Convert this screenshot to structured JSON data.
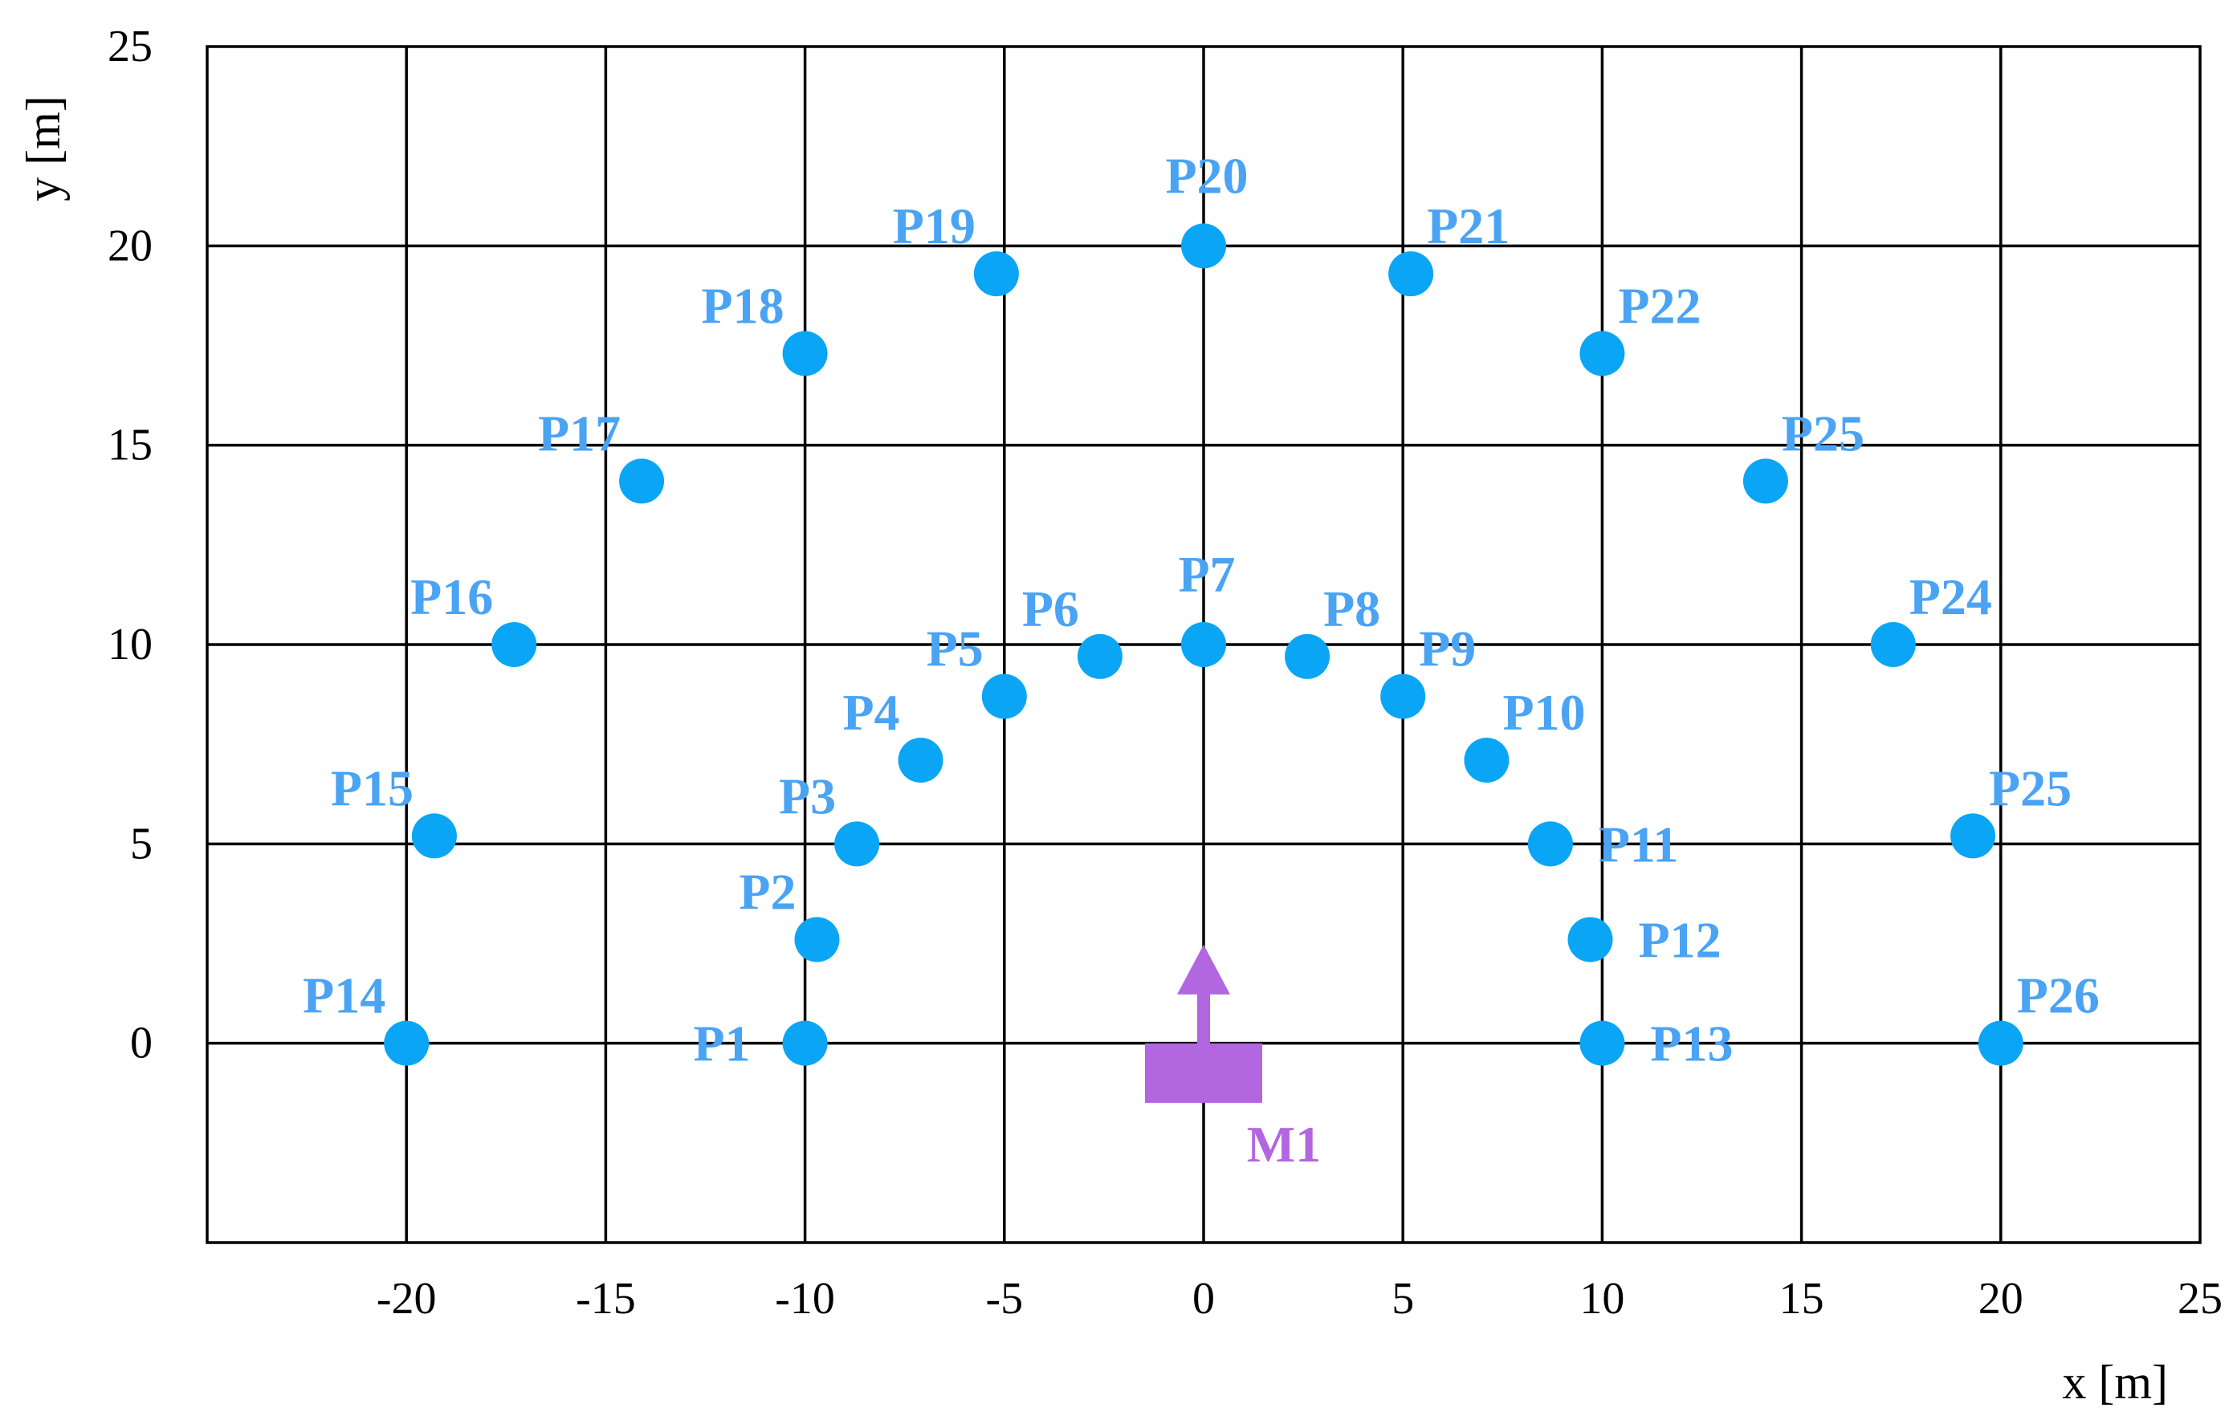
{
  "chart_data": {
    "type": "scatter",
    "title": "",
    "xlabel": "x [m]",
    "ylabel": "y [m]",
    "xlim": [
      -25,
      25
    ],
    "ylim": [
      -5,
      25
    ],
    "x_ticks": [
      -20,
      -15,
      -10,
      -5,
      0,
      5,
      10,
      15,
      20,
      25
    ],
    "y_ticks": [
      0,
      5,
      10,
      15,
      20,
      25
    ],
    "grid": true,
    "legend": "none",
    "colors": {
      "points": "#0aa6f5",
      "labels": "#4aa3f3",
      "microphone": "#b266e0",
      "grid": "#000000"
    },
    "points": [
      {
        "label": "P1",
        "x": -10,
        "y": 0,
        "label_side": "left"
      },
      {
        "label": "P2",
        "x": -9.7,
        "y": 2.6,
        "label_side": "upper-left"
      },
      {
        "label": "P3",
        "x": -8.7,
        "y": 5,
        "label_side": "upper-left"
      },
      {
        "label": "P4",
        "x": -7.1,
        "y": 7.1,
        "label_side": "upper-left"
      },
      {
        "label": "P5",
        "x": -5,
        "y": 8.7,
        "label_side": "upper-left"
      },
      {
        "label": "P6",
        "x": -2.6,
        "y": 9.7,
        "label_side": "upper-left"
      },
      {
        "label": "P7",
        "x": 0,
        "y": 10,
        "label_side": "top"
      },
      {
        "label": "P8",
        "x": 2.6,
        "y": 9.7,
        "label_side": "upper-right"
      },
      {
        "label": "P9",
        "x": 5,
        "y": 8.7,
        "label_side": "upper-right"
      },
      {
        "label": "P10",
        "x": 7.1,
        "y": 7.1,
        "label_side": "upper-right"
      },
      {
        "label": "P11",
        "x": 8.7,
        "y": 5,
        "label_side": "right"
      },
      {
        "label": "P12",
        "x": 9.7,
        "y": 2.6,
        "label_side": "right"
      },
      {
        "label": "P13",
        "x": 10,
        "y": 0,
        "label_side": "right"
      },
      {
        "label": "P14",
        "x": -20,
        "y": 0,
        "label_side": "upper-left"
      },
      {
        "label": "P15",
        "x": -19.3,
        "y": 5.2,
        "label_side": "upper-left"
      },
      {
        "label": "P16",
        "x": -17.3,
        "y": 10,
        "label_side": "upper-left"
      },
      {
        "label": "P17",
        "x": -14.1,
        "y": 14.1,
        "label_side": "upper-left"
      },
      {
        "label": "P18",
        "x": -10,
        "y": 17.3,
        "label_side": "upper-left"
      },
      {
        "label": "P19",
        "x": -5.2,
        "y": 19.3,
        "label_side": "upper-left"
      },
      {
        "label": "P20",
        "x": 0,
        "y": 20,
        "label_side": "top"
      },
      {
        "label": "P21",
        "x": 5.2,
        "y": 19.3,
        "label_side": "upper-right"
      },
      {
        "label": "P22",
        "x": 10,
        "y": 17.3,
        "label_side": "upper-right"
      },
      {
        "label": "P25",
        "x": 14.1,
        "y": 14.1,
        "label_side": "upper-right"
      },
      {
        "label": "P24",
        "x": 17.3,
        "y": 10,
        "label_side": "upper-right"
      },
      {
        "label": "P25",
        "x": 19.3,
        "y": 5.2,
        "label_side": "upper-right"
      },
      {
        "label": "P26",
        "x": 20,
        "y": 0,
        "label_side": "upper-right"
      }
    ],
    "microphone": {
      "label": "M1",
      "x": 0,
      "y": -0.75,
      "facing": "up"
    }
  }
}
